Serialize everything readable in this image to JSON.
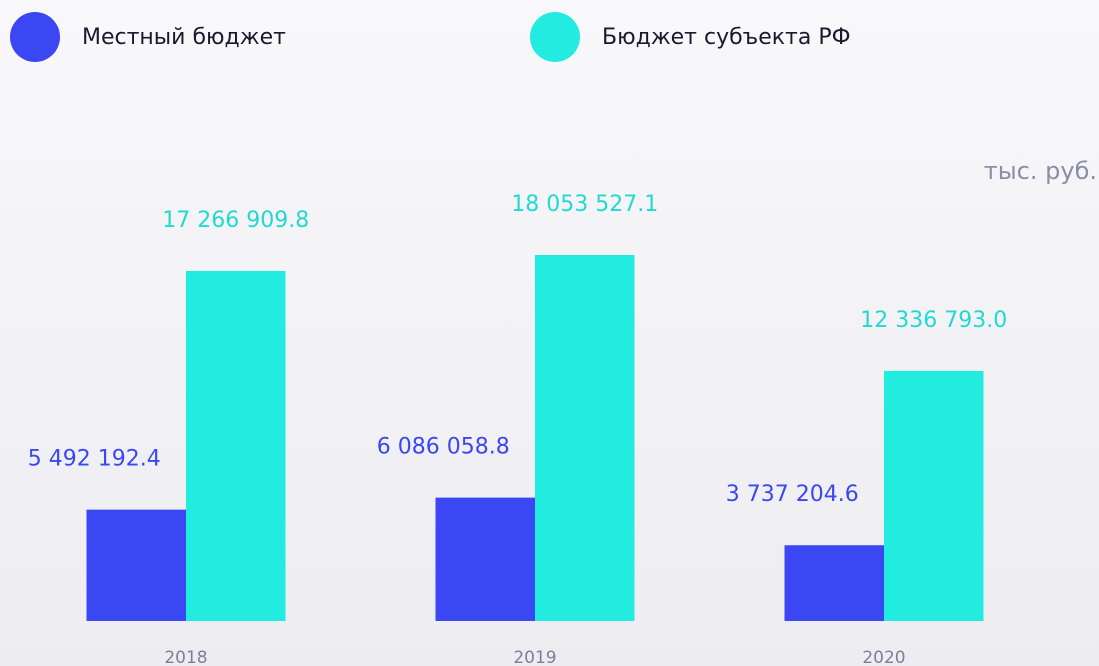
{
  "chart_data": {
    "type": "bar",
    "unit": "тыс. руб.",
    "categories": [
      "2018",
      "2019",
      "2020"
    ],
    "series": [
      {
        "name": "Местный бюджет",
        "color": "#3a47f2",
        "values": [
          5492192.4,
          6086058.8,
          3737204.6
        ],
        "value_labels": [
          "5 492 192.4",
          "6 086 058.8",
          "3 737 204.6"
        ]
      },
      {
        "name": "Бюджет субъекта РФ",
        "color": "#22ebdf",
        "values": [
          17266909.8,
          18053527.1,
          12336793.0
        ],
        "value_labels": [
          "17 266 909.8",
          "18 053 527.1",
          "12 336 793.0"
        ]
      }
    ],
    "legend": "top-left"
  }
}
